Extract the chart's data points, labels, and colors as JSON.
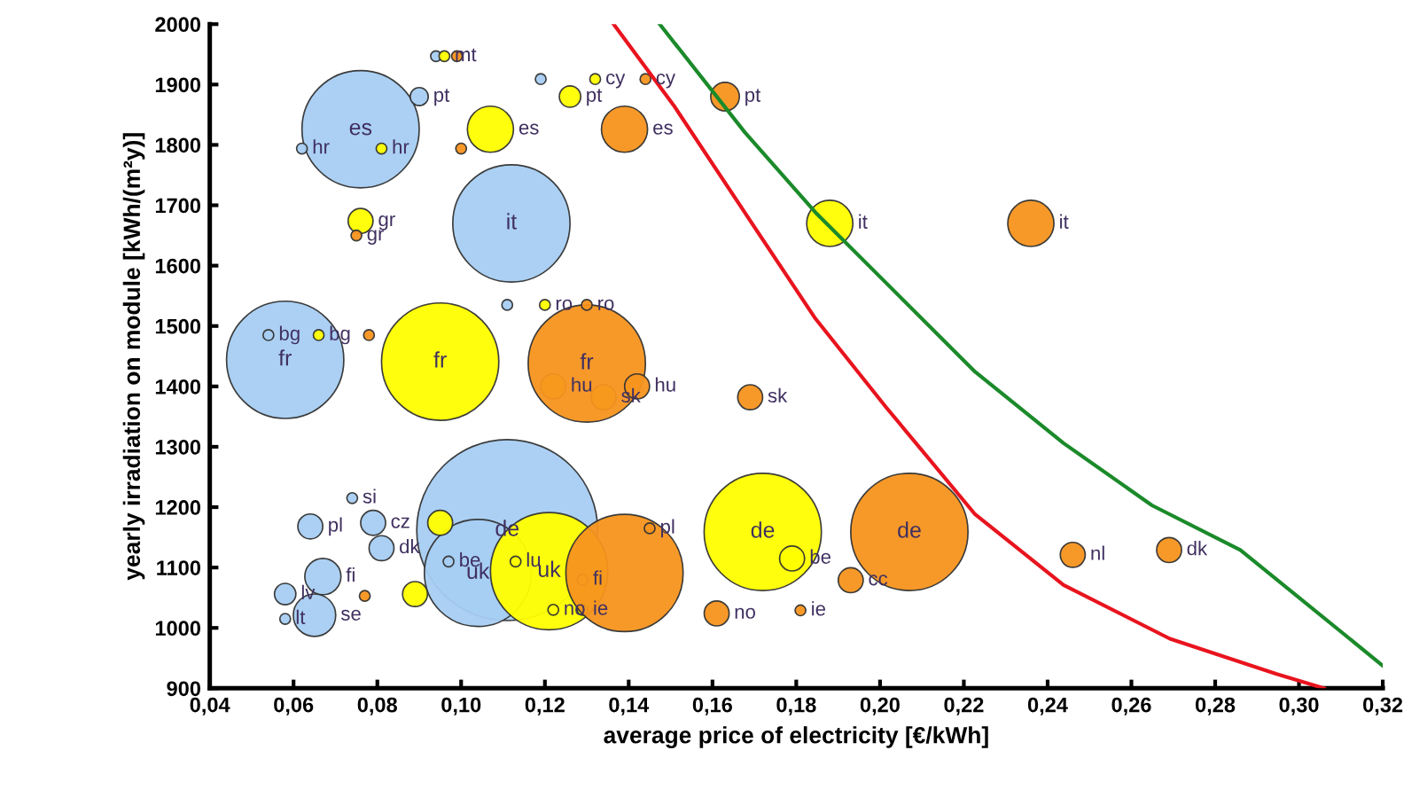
{
  "chart_data": {
    "type": "bubble",
    "xlabel": "average price of electricity [€/kWh]",
    "ylabel": "yearly irradiation on module [kWh/(m²y)]",
    "xlim": [
      0.04,
      0.32
    ],
    "ylim": [
      900,
      2000
    ],
    "xticks": [
      {
        "value": 0.04,
        "label": "0,04"
      },
      {
        "value": 0.06,
        "label": "0,06"
      },
      {
        "value": 0.08,
        "label": "0,08"
      },
      {
        "value": 0.1,
        "label": "0,10"
      },
      {
        "value": 0.12,
        "label": "0,12"
      },
      {
        "value": 0.14,
        "label": "0,14"
      },
      {
        "value": 0.16,
        "label": "0,16"
      },
      {
        "value": 0.18,
        "label": "0,18"
      },
      {
        "value": 0.2,
        "label": "0,20"
      },
      {
        "value": 0.22,
        "label": "0,22"
      },
      {
        "value": 0.24,
        "label": "0,24"
      },
      {
        "value": 0.26,
        "label": "0,26"
      },
      {
        "value": 0.28,
        "label": "0,28"
      },
      {
        "value": 0.3,
        "label": "0,30"
      },
      {
        "value": 0.32,
        "label": "0,32"
      }
    ],
    "yticks": [
      900,
      1000,
      1100,
      1200,
      1300,
      1400,
      1500,
      1600,
      1700,
      1800,
      1900,
      2000
    ],
    "grid": false,
    "legend": false,
    "series": [
      {
        "color": "#a6cdf2",
        "x": [
          0.076,
          0.09,
          0.062,
          0.112,
          0.058,
          0.111,
          0.119,
          0.094,
          0.111,
          0.104,
          0.064,
          0.079,
          0.081,
          0.067,
          0.065,
          0.058,
          0.054,
          0.074,
          0.097,
          0.058
        ],
        "values": [
          1826,
          1880,
          1794,
          1670,
          1444,
          1535,
          1909,
          1947,
          1162,
          1091,
          1168,
          1174,
          1132,
          1085,
          1021,
          1056,
          1485,
          1215,
          1110,
          1015
        ],
        "sizes": [
          0.42,
          0.01,
          0.0035,
          0.42,
          0.42,
          0.0035,
          0.0035,
          0.0035,
          1,
          0.35,
          0.019,
          0.019,
          0.019,
          0.04,
          0.055,
          0.014,
          0.0035,
          0.0035,
          0.0035,
          0.0035
        ]
      },
      {
        "color": "#ffff00",
        "x": [
          0.107,
          0.076,
          0.126,
          0.132,
          0.096,
          0.188,
          0.095,
          0.122,
          0.134,
          0.172,
          0.121,
          0.095,
          0.179,
          0.089,
          0.12,
          0.066,
          0.081,
          0.113,
          0.129,
          0.122,
          0.129
        ],
        "values": [
          1826,
          1674,
          1880,
          1909,
          1947,
          1670,
          1441,
          1400,
          1382,
          1159,
          1094,
          1174,
          1115,
          1056,
          1535,
          1485,
          1794,
          1110,
          1080,
          1030,
          1030
        ],
        "sizes": [
          0.065,
          0.019,
          0.014,
          0.0035,
          0.0035,
          0.065,
          0.42,
          0.019,
          0.019,
          0.42,
          0.42,
          0.019,
          0.019,
          0.019,
          0.0035,
          0.0035,
          0.0035,
          0.0035,
          0.0035,
          0.0035,
          0.0035
        ]
      },
      {
        "color": "#f7941d",
        "x": [
          0.163,
          0.139,
          0.144,
          0.236,
          0.13,
          0.142,
          0.169,
          0.13,
          0.207,
          0.139,
          0.193,
          0.246,
          0.269,
          0.161,
          0.181,
          0.1,
          0.078,
          0.077,
          0.099,
          0.075,
          0.145
        ],
        "values": [
          1880,
          1826,
          1909,
          1670,
          1438,
          1400,
          1382,
          1535,
          1159,
          1091,
          1079,
          1121,
          1129,
          1024,
          1029,
          1794,
          1485,
          1053,
          1947,
          1650,
          1165
        ],
        "sizes": [
          0.025,
          0.065,
          0.0035,
          0.065,
          0.42,
          0.019,
          0.019,
          0.0035,
          0.42,
          0.42,
          0.019,
          0.019,
          0.019,
          0.019,
          0.0035,
          0.0035,
          0.0035,
          0.0035,
          0.0035,
          0.0035,
          0.0035
        ]
      },
      {
        "type": "line",
        "color": "#e8141e",
        "x": [
          0.1364,
          0.1508,
          0.1677,
          0.1846,
          0.2015,
          0.2227,
          0.2438,
          0.2692,
          0.2945,
          0.306
        ],
        "values": [
          2000,
          1865,
          1688,
          1512,
          1365,
          1188,
          1071,
          982,
          924,
          900
        ]
      },
      {
        "type": "line",
        "color": "#1b8a2a",
        "x": [
          0.1474,
          0.1677,
          0.1846,
          0.2015,
          0.2227,
          0.2438,
          0.2649,
          0.286,
          0.3199
        ],
        "values": [
          2000,
          1821,
          1688,
          1571,
          1424,
          1306,
          1203,
          1129,
          938
        ]
      }
    ],
    "annotations": [
      {
        "text": "es",
        "x": 0.076,
        "y": 1826
      },
      {
        "text": "pt",
        "x": 0.09,
        "y": 1880
      },
      {
        "text": "hr",
        "x": 0.062,
        "y": 1794
      },
      {
        "text": "it",
        "x": 0.112,
        "y": 1670
      },
      {
        "text": "fr",
        "x": 0.058,
        "y": 1444
      },
      {
        "text": "bg",
        "x": 0.054,
        "y": 1485
      },
      {
        "text": "de",
        "x": 0.111,
        "y": 1162
      },
      {
        "text": "uk",
        "x": 0.104,
        "y": 1091
      },
      {
        "text": "pl",
        "x": 0.064,
        "y": 1168
      },
      {
        "text": "si",
        "x": 0.074,
        "y": 1215
      },
      {
        "text": "cz",
        "x": 0.079,
        "y": 1174
      },
      {
        "text": "dk",
        "x": 0.081,
        "y": 1132
      },
      {
        "text": "be",
        "x": 0.097,
        "y": 1110
      },
      {
        "text": "fi",
        "x": 0.067,
        "y": 1085
      },
      {
        "text": "lv",
        "x": 0.058,
        "y": 1056
      },
      {
        "text": "lt",
        "x": 0.058,
        "y": 1015
      },
      {
        "text": "se",
        "x": 0.065,
        "y": 1021
      },
      {
        "text": "es",
        "x": 0.107,
        "y": 1826
      },
      {
        "text": "gr",
        "x": 0.076,
        "y": 1674
      },
      {
        "text": "gr",
        "x": 0.075,
        "y": 1650
      },
      {
        "text": "pt",
        "x": 0.126,
        "y": 1880
      },
      {
        "text": "cy",
        "x": 0.132,
        "y": 1909
      },
      {
        "text": "mt",
        "x": 0.096,
        "y": 1947
      },
      {
        "text": "it",
        "x": 0.188,
        "y": 1670
      },
      {
        "text": "fr",
        "x": 0.095,
        "y": 1441
      },
      {
        "text": "hu",
        "x": 0.122,
        "y": 1400
      },
      {
        "text": "sk",
        "x": 0.134,
        "y": 1382
      },
      {
        "text": "de",
        "x": 0.172,
        "y": 1159
      },
      {
        "text": "uk",
        "x": 0.121,
        "y": 1094
      },
      {
        "text": "fi",
        "x": 0.129,
        "y": 1080
      },
      {
        "text": "lu",
        "x": 0.113,
        "y": 1110
      },
      {
        "text": "no",
        "x": 0.122,
        "y": 1030
      },
      {
        "text": "ie",
        "x": 0.129,
        "y": 1030
      },
      {
        "text": "ro",
        "x": 0.12,
        "y": 1535
      },
      {
        "text": "bg",
        "x": 0.066,
        "y": 1485
      },
      {
        "text": "hr",
        "x": 0.081,
        "y": 1794
      },
      {
        "text": "pt",
        "x": 0.163,
        "y": 1880
      },
      {
        "text": "es",
        "x": 0.139,
        "y": 1826
      },
      {
        "text": "cy",
        "x": 0.144,
        "y": 1909
      },
      {
        "text": "it",
        "x": 0.236,
        "y": 1670
      },
      {
        "text": "fr",
        "x": 0.13,
        "y": 1438
      },
      {
        "text": "hu",
        "x": 0.142,
        "y": 1400
      },
      {
        "text": "sk",
        "x": 0.169,
        "y": 1382
      },
      {
        "text": "ro",
        "x": 0.13,
        "y": 1535
      },
      {
        "text": "de",
        "x": 0.207,
        "y": 1159
      },
      {
        "text": "cc",
        "x": 0.193,
        "y": 1079
      },
      {
        "text": "nl",
        "x": 0.246,
        "y": 1121
      },
      {
        "text": "dk",
        "x": 0.269,
        "y": 1129
      },
      {
        "text": "no",
        "x": 0.161,
        "y": 1024
      },
      {
        "text": "ie",
        "x": 0.181,
        "y": 1029
      },
      {
        "text": "be",
        "x": 0.179,
        "y": 1115
      },
      {
        "text": "pl",
        "x": 0.145,
        "y": 1165
      }
    ]
  }
}
